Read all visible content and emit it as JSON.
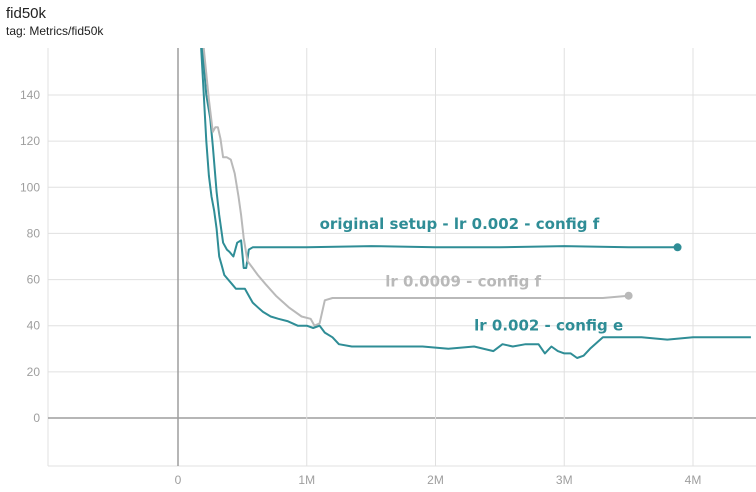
{
  "title": "fid50k",
  "tag": "tag: Metrics/fid50k",
  "chart_data": {
    "type": "line",
    "title": "fid50k",
    "xlabel": "",
    "ylabel": "",
    "xlim": [
      -1000000,
      4450000
    ],
    "ylim": [
      -20,
      160
    ],
    "grid": true,
    "x_ticks": [
      0,
      1000000,
      2000000,
      3000000,
      4000000
    ],
    "x_tick_labels": [
      "0",
      "1M",
      "2M",
      "3M",
      "4M"
    ],
    "y_ticks": [
      0,
      20,
      40,
      60,
      80,
      100,
      120,
      140
    ],
    "y_tick_labels": [
      "0",
      "20",
      "40",
      "60",
      "80",
      "100",
      "120",
      "140"
    ],
    "colors": {
      "teal": "#2f8d96",
      "gray": "#b9b9b9",
      "grid": "#e0e0e0",
      "axis_zero": "#9e9e9e"
    },
    "series": [
      {
        "annotation": "original setup - lr 0.002 - config f",
        "color": "#2f8d96",
        "end_marker": true,
        "x": [
          160000,
          190000,
          220000,
          250000,
          270000,
          300000,
          320000,
          350000,
          380000,
          400000,
          430000,
          460000,
          490000,
          510000,
          530000,
          550000,
          580000,
          620000,
          800000,
          1000000,
          1500000,
          2000000,
          2500000,
          3000000,
          3500000,
          3880000
        ],
        "y": [
          200,
          160,
          140,
          130,
          118,
          98,
          88,
          76,
          73,
          72,
          70,
          76,
          77,
          65,
          65,
          73,
          74,
          74,
          74,
          74,
          74.5,
          74,
          74,
          74.5,
          74,
          74
        ]
      },
      {
        "annotation": "lr 0.0009 - config f",
        "color": "#b9b9b9",
        "end_marker": true,
        "x": [
          160000,
          200000,
          240000,
          270000,
          290000,
          310000,
          330000,
          350000,
          380000,
          410000,
          440000,
          470000,
          490000,
          510000,
          540000,
          580000,
          620000,
          680000,
          760000,
          860000,
          960000,
          1030000,
          1060000,
          1100000,
          1140000,
          1200000,
          1500000,
          2000000,
          2500000,
          3000000,
          3300000,
          3500000
        ],
        "y": [
          200,
          160,
          138,
          124,
          126,
          126,
          121,
          113,
          113,
          112,
          106,
          96,
          88,
          78,
          68,
          65,
          62,
          58,
          53,
          48,
          44,
          43,
          40,
          41,
          51,
          52,
          52,
          52,
          52,
          52,
          52,
          53
        ]
      },
      {
        "annotation": "lr 0.002 - config e",
        "color": "#2f8d96",
        "end_marker": false,
        "x": [
          160000,
          180000,
          200000,
          220000,
          240000,
          260000,
          280000,
          300000,
          320000,
          340000,
          360000,
          390000,
          420000,
          450000,
          480000,
          520000,
          550000,
          580000,
          620000,
          660000,
          720000,
          780000,
          850000,
          930000,
          1000000,
          1050000,
          1100000,
          1140000,
          1200000,
          1250000,
          1350000,
          1500000,
          1700000,
          1900000,
          2100000,
          2300000,
          2450000,
          2520000,
          2600000,
          2700000,
          2800000,
          2850000,
          2900000,
          2950000,
          3000000,
          3050000,
          3100000,
          3150000,
          3200000,
          3300000,
          3400000,
          3600000,
          3800000,
          4000000,
          4200000,
          4450000
        ],
        "y": [
          200,
          160,
          140,
          120,
          105,
          96,
          90,
          82,
          70,
          66,
          62,
          60,
          58,
          56,
          56,
          56,
          53,
          50,
          48,
          46,
          44,
          43,
          42,
          40,
          40,
          39,
          40,
          37,
          35,
          32,
          31,
          31,
          31,
          31,
          30,
          31,
          29,
          32,
          31,
          32,
          32,
          28,
          31,
          29,
          28,
          28,
          26,
          27,
          30,
          35,
          35,
          35,
          34,
          35,
          35,
          35
        ]
      }
    ],
    "annotations": [
      {
        "text": "original setup - lr 0.002 - config f",
        "x": 1100000,
        "y": 82,
        "color": "#2f8d96"
      },
      {
        "text": "lr 0.0009 - config f",
        "x": 1610000,
        "y": 57,
        "color": "#b9b9b9"
      },
      {
        "text": "lr 0.002 - config e",
        "x": 2300000,
        "y": 38,
        "color": "#2f8d96"
      }
    ]
  }
}
